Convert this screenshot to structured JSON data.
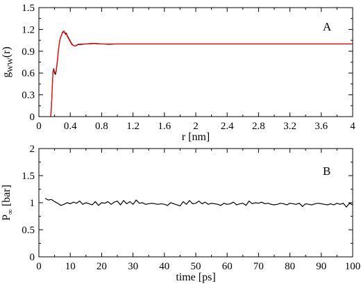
{
  "chart_data": [
    {
      "type": "line",
      "panel_label": "A",
      "xlabel": "r [nm]",
      "ylabel_main": "g",
      "ylabel_sub": "WW",
      "ylabel_tail": "(r)",
      "xlim": [
        0,
        4
      ],
      "ylim": [
        0,
        1.5
      ],
      "x_ticks": [
        "0",
        "0.4",
        "0.8",
        "1.2",
        "1.6",
        "2",
        "2.4",
        "2.8",
        "3.2",
        "3.6",
        "4"
      ],
      "x_tick_values": [
        0,
        0.4,
        0.8,
        1.2,
        1.6,
        2.0,
        2.4,
        2.8,
        3.2,
        3.6,
        4.0
      ],
      "y_ticks": [
        "0",
        "0.3",
        "0.6",
        "0.9",
        "1.2",
        "1.5"
      ],
      "y_tick_values": [
        0,
        0.3,
        0.6,
        0.9,
        1.2,
        1.5
      ],
      "grid": false,
      "series": [
        {
          "color": "#000000",
          "x": [
            0.15,
            0.16,
            0.17,
            0.18,
            0.19,
            0.2,
            0.21,
            0.22,
            0.23,
            0.24,
            0.25,
            0.26,
            0.27,
            0.28,
            0.29,
            0.3,
            0.31,
            0.32,
            0.33,
            0.34,
            0.35,
            0.36,
            0.38,
            0.4,
            0.42,
            0.44,
            0.46,
            0.48,
            0.5,
            0.55,
            0.6,
            0.65,
            0.7,
            0.75,
            0.8,
            0.9,
            1.0,
            1.2,
            1.5,
            2.0,
            2.5,
            3.0,
            3.5,
            4.0
          ],
          "y": [
            0.0,
            0.12,
            0.38,
            0.62,
            0.66,
            0.6,
            0.58,
            0.62,
            0.7,
            0.8,
            0.92,
            1.0,
            1.06,
            1.1,
            1.12,
            1.16,
            1.17,
            1.17,
            1.16,
            1.14,
            1.15,
            1.12,
            1.08,
            1.04,
            1.0,
            0.98,
            0.97,
            0.98,
            0.99,
            0.995,
            1.0,
            1.005,
            1.01,
            1.005,
            1.0,
            0.995,
            1.0,
            1.0,
            1.0,
            1.0,
            1.0,
            1.0,
            1.0,
            1.0
          ]
        },
        {
          "color": "#ff0000",
          "x": [
            0.15,
            0.16,
            0.17,
            0.18,
            0.19,
            0.2,
            0.21,
            0.22,
            0.23,
            0.24,
            0.25,
            0.26,
            0.27,
            0.28,
            0.29,
            0.3,
            0.31,
            0.32,
            0.33,
            0.34,
            0.35,
            0.36,
            0.38,
            0.4,
            0.42,
            0.44,
            0.46,
            0.48,
            0.5,
            0.55,
            0.6,
            0.65,
            0.7,
            0.75,
            0.8,
            0.9,
            1.0,
            1.2,
            1.5,
            2.0,
            2.5,
            3.0,
            3.5,
            4.0
          ],
          "y": [
            0.0,
            0.14,
            0.4,
            0.6,
            0.64,
            0.62,
            0.6,
            0.63,
            0.72,
            0.82,
            0.93,
            1.01,
            1.07,
            1.1,
            1.13,
            1.15,
            1.16,
            1.18,
            1.15,
            1.13,
            1.14,
            1.11,
            1.07,
            1.03,
            0.99,
            0.98,
            0.97,
            0.985,
            0.995,
            1.0,
            1.0,
            1.0,
            1.005,
            1.0,
            1.0,
            1.0,
            1.0,
            1.0,
            1.0,
            1.0,
            1.0,
            1.0,
            1.0,
            1.0
          ]
        }
      ]
    },
    {
      "type": "line",
      "panel_label": "B",
      "xlabel": "time [ps]",
      "ylabel_main": "P",
      "ylabel_sub": "∞",
      "ylabel_tail": " [bar]",
      "xlim": [
        0,
        100
      ],
      "ylim": [
        0,
        2
      ],
      "x_ticks": [
        "0",
        "10",
        "20",
        "30",
        "40",
        "50",
        "60",
        "70",
        "80",
        "90",
        "100"
      ],
      "x_tick_values": [
        0,
        10,
        20,
        30,
        40,
        50,
        60,
        70,
        80,
        90,
        100
      ],
      "y_ticks": [
        "0",
        "0.5",
        "1",
        "1.5",
        "2"
      ],
      "y_tick_values": [
        0,
        0.5,
        1.0,
        1.5,
        2.0
      ],
      "grid": false,
      "series": [
        {
          "color": "#000000",
          "x": [
            2,
            3,
            4,
            5,
            6,
            7,
            8,
            9,
            10,
            11,
            12,
            13,
            14,
            15,
            16,
            17,
            18,
            19,
            20,
            21,
            22,
            23,
            24,
            25,
            26,
            27,
            28,
            29,
            30,
            31,
            32,
            33,
            34,
            35,
            36,
            37,
            38,
            39,
            40,
            41,
            42,
            43,
            44,
            45,
            46,
            47,
            48,
            49,
            50,
            51,
            52,
            53,
            54,
            55,
            56,
            57,
            58,
            59,
            60,
            61,
            62,
            63,
            64,
            65,
            66,
            67,
            68,
            69,
            70,
            71,
            72,
            73,
            74,
            75,
            76,
            77,
            78,
            79,
            80,
            81,
            82,
            83,
            84,
            85,
            86,
            87,
            88,
            89,
            90,
            91,
            92,
            93,
            94,
            95,
            96,
            97,
            98,
            99,
            100
          ],
          "y": [
            1.08,
            1.05,
            1.06,
            1.02,
            0.99,
            0.95,
            0.97,
            1.0,
            0.98,
            1.01,
            0.99,
            1.03,
            0.97,
            1.0,
            0.98,
            0.96,
            1.02,
            0.95,
            1.0,
            0.99,
            1.02,
            0.97,
            1.01,
            1.03,
            0.96,
            1.04,
            0.98,
            1.02,
            0.97,
            1.05,
            0.99,
            1.0,
            0.97,
            0.98,
            0.99,
            0.98,
            0.97,
            0.98,
            0.97,
            0.95,
            1.0,
            0.98,
            0.96,
            0.94,
            1.02,
            0.97,
            1.04,
            0.98,
            0.99,
            1.03,
            0.98,
            1.01,
            0.97,
            0.99,
            0.98,
            0.97,
            0.95,
            0.99,
            0.97,
            0.98,
            1.01,
            0.96,
            0.98,
            0.99,
            0.95,
            1.03,
            0.98,
            1.0,
            0.99,
            1.01,
            0.98,
            0.99,
            0.97,
            0.96,
            0.97,
            0.99,
            0.98,
            0.96,
            0.99,
            0.98,
            0.97,
            0.99,
            0.93,
            0.98,
            0.97,
            0.96,
            0.98,
            0.99,
            0.98,
            0.97,
            0.96,
            0.98,
            0.96,
            0.99,
            0.97,
            0.99,
            0.92,
            0.99,
            0.96
          ]
        }
      ]
    }
  ]
}
